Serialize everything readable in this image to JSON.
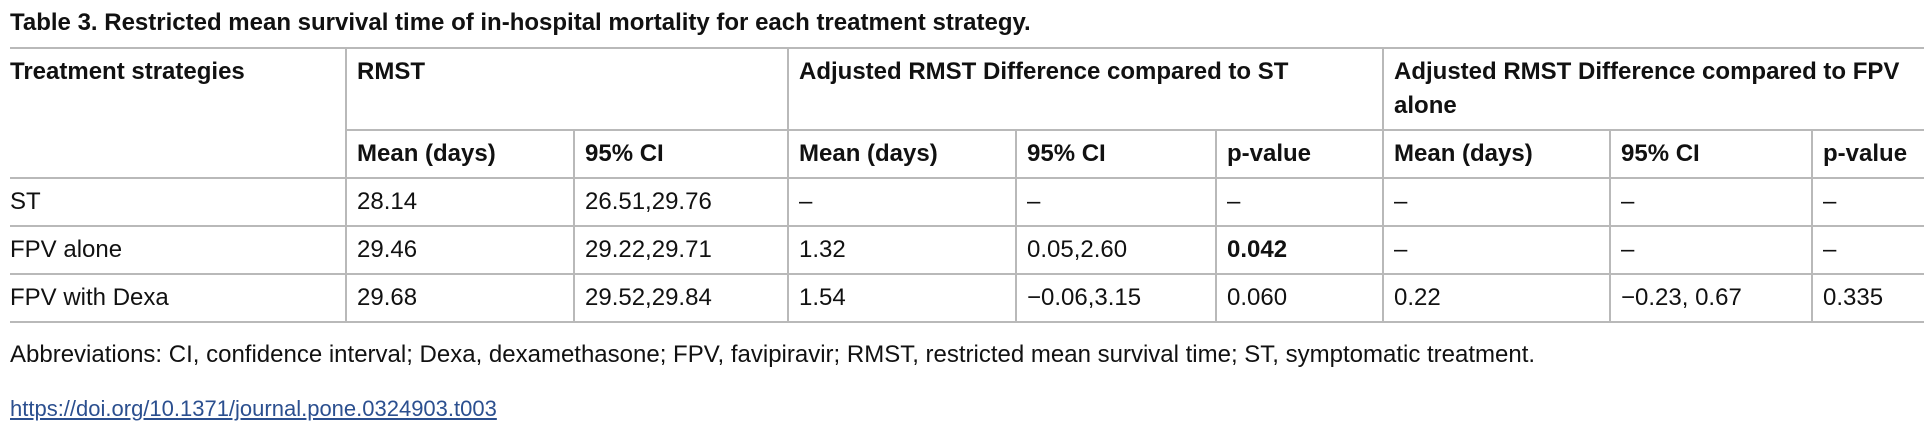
{
  "caption": "Table 3.  Restricted mean survival time of in-hospital mortality for each treatment strategy.",
  "table": {
    "group_headers": {
      "treatment": "Treatment strategies",
      "rmst": "RMST",
      "adj_vs_st": "Adjusted RMST Difference compared to ST",
      "adj_vs_fpv": "Adjusted RMST Difference compared to FPV alone"
    },
    "sub_headers": [
      "Mean (days)",
      "95% CI",
      "Mean (days)",
      "95% CI",
      "p-value",
      "Mean (days)",
      "95% CI",
      "p-value"
    ],
    "rows": [
      {
        "cells": [
          "ST",
          "28.14",
          "26.51,29.76",
          "–",
          "–",
          "–",
          "–",
          "–",
          "–"
        ]
      },
      {
        "cells": [
          "FPV alone",
          "29.46",
          "29.22,29.71",
          "1.32",
          "0.05,2.60",
          "0.042",
          "–",
          "–",
          "–"
        ]
      },
      {
        "cells": [
          "FPV with Dexa",
          "29.68",
          "29.52,29.84",
          "1.54",
          "−0.06,3.15",
          "0.060",
          "0.22",
          "−0.23, 0.67",
          "0.335"
        ]
      }
    ]
  },
  "footnote": "Abbreviations: CI, confidence interval; Dexa, dexamethasone; FPV, favipiravir; RMST, restricted mean survival time; ST, symptomatic treatment.",
  "doi_link": "https://doi.org/10.1371/journal.pone.0324903.t003",
  "colors": {
    "text": "#111111",
    "rule": "#b9b9b9",
    "link": "#2b4f8f"
  }
}
